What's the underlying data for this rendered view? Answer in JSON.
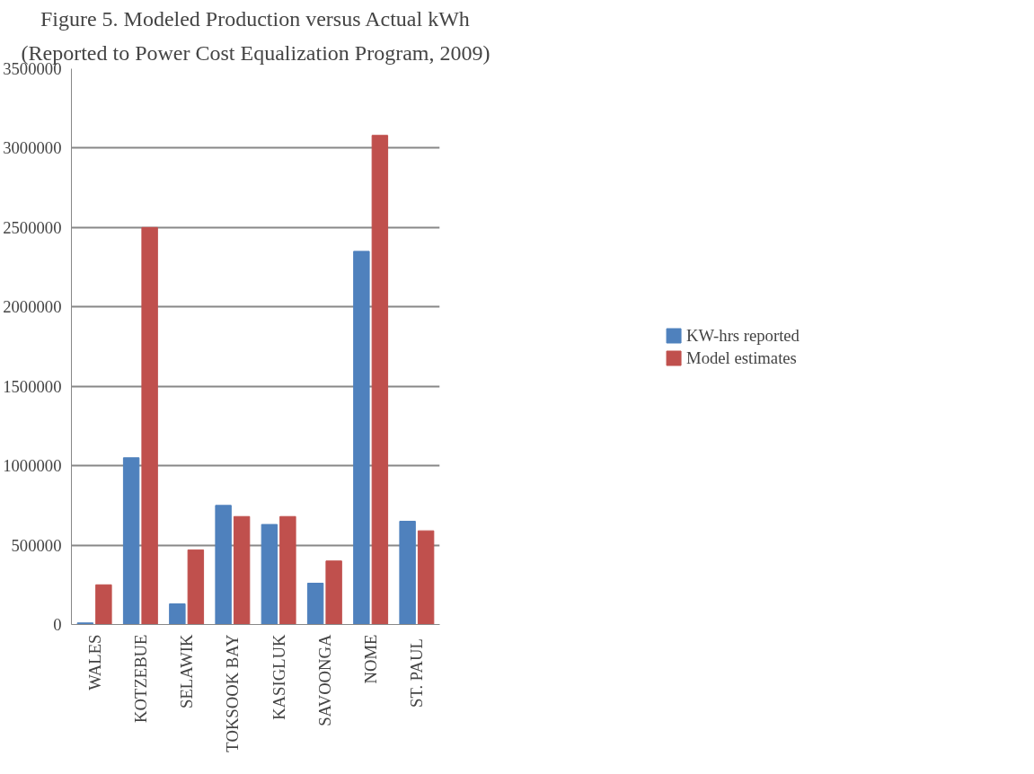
{
  "chart_data": {
    "type": "bar",
    "title": "Figure 5. Modeled Production versus Actual kWh",
    "subtitle": "(Reported to Power Cost Equalization Program, 2009)",
    "categories": [
      "WALES",
      "KOTZEBUE",
      "SELAWIK",
      "TOKSOOK BAY",
      "KASIGLUK",
      "SAVOONGA",
      "NOME",
      "ST.  PAUL"
    ],
    "series": [
      {
        "name": "KW-hrs reported",
        "color": "#4f81bd",
        "values": [
          10000,
          1050000,
          130000,
          750000,
          630000,
          260000,
          2350000,
          650000
        ]
      },
      {
        "name": "Model estimates",
        "color": "#c0504d",
        "values": [
          250000,
          2500000,
          470000,
          680000,
          680000,
          400000,
          3080000,
          590000
        ]
      }
    ],
    "ylim": [
      0,
      3500000
    ],
    "yticks": [
      0,
      500000,
      1000000,
      1500000,
      2000000,
      2500000,
      3000000,
      3500000
    ],
    "grid": "y",
    "legend": "right"
  }
}
